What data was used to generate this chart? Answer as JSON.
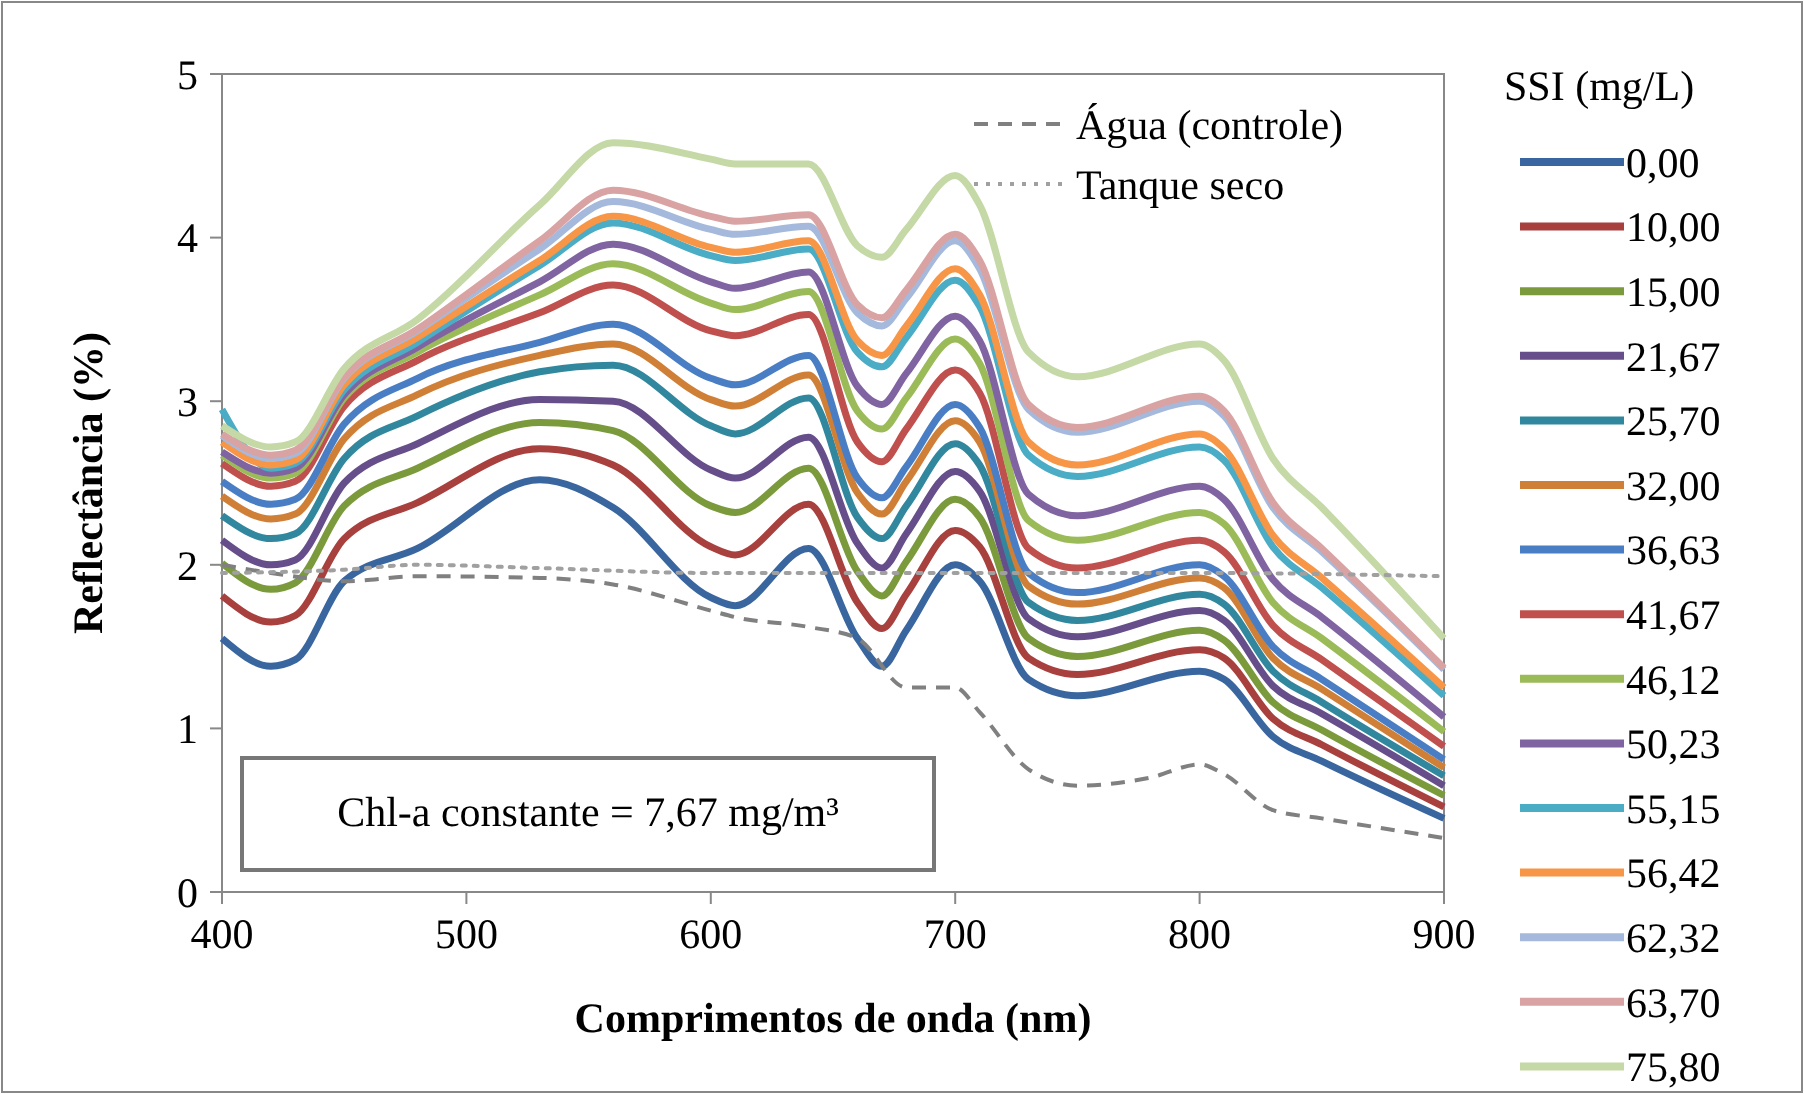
{
  "chart_data": {
    "type": "line",
    "xlabel": "Comprimentos de onda (nm)",
    "ylabel": "Reflectância (%)",
    "legend_title": "SSI (mg/L)",
    "legend": "right",
    "grid": false,
    "line_style": "solid",
    "xlim": [
      400,
      900
    ],
    "xticks": [
      400,
      500,
      600,
      700,
      800,
      900
    ],
    "ylim": [
      0,
      5
    ],
    "yticks": [
      0,
      1,
      2,
      3,
      4,
      5
    ],
    "annotations": [
      "Chl-a constante = 7,67 mg/m³"
    ],
    "x": [
      400,
      420,
      430,
      450,
      480,
      530,
      560,
      600,
      610,
      640,
      660,
      670,
      680,
      700,
      710,
      730,
      750,
      800,
      810,
      830,
      850,
      900
    ],
    "series": [
      {
        "name": "0,00",
        "color": "#3a66a0",
        "values": [
          1.55,
          1.38,
          1.42,
          1.9,
          2.1,
          2.52,
          2.35,
          1.8,
          1.75,
          2.1,
          1.55,
          1.38,
          1.6,
          2.0,
          1.9,
          1.3,
          1.2,
          1.35,
          1.3,
          0.95,
          0.8,
          0.45
        ]
      },
      {
        "name": "10,00",
        "color": "#a8403e",
        "values": [
          1.81,
          1.65,
          1.69,
          2.16,
          2.38,
          2.71,
          2.61,
          2.11,
          2.06,
          2.37,
          1.77,
          1.61,
          1.82,
          2.21,
          2.11,
          1.43,
          1.33,
          1.48,
          1.43,
          1.06,
          0.9,
          0.52
        ]
      },
      {
        "name": "15,00",
        "color": "#7a9a3c",
        "values": [
          2.01,
          1.85,
          1.89,
          2.36,
          2.59,
          2.87,
          2.82,
          2.36,
          2.32,
          2.59,
          1.96,
          1.81,
          2.02,
          2.4,
          2.29,
          1.55,
          1.44,
          1.6,
          1.54,
          1.16,
          0.99,
          0.59
        ]
      },
      {
        "name": "21,67",
        "color": "#654e8a",
        "values": [
          2.15,
          2.0,
          2.03,
          2.5,
          2.74,
          3.01,
          3.0,
          2.58,
          2.53,
          2.78,
          2.13,
          1.98,
          2.19,
          2.57,
          2.45,
          1.67,
          1.56,
          1.72,
          1.66,
          1.26,
          1.09,
          0.65
        ]
      },
      {
        "name": "25,70",
        "color": "#31889e",
        "values": [
          2.3,
          2.16,
          2.19,
          2.65,
          2.91,
          3.18,
          3.22,
          2.85,
          2.8,
          3.02,
          2.29,
          2.16,
          2.36,
          2.74,
          2.61,
          1.77,
          1.66,
          1.82,
          1.76,
          1.35,
          1.16,
          0.71
        ]
      },
      {
        "name": "32,00",
        "color": "#d07f37",
        "values": [
          2.42,
          2.28,
          2.31,
          2.77,
          3.04,
          3.28,
          3.35,
          3.01,
          2.97,
          3.16,
          2.44,
          2.31,
          2.51,
          2.88,
          2.75,
          1.87,
          1.76,
          1.92,
          1.86,
          1.43,
          1.24,
          0.76
        ]
      },
      {
        "name": "36,63",
        "color": "#4a7ec4",
        "values": [
          2.51,
          2.37,
          2.4,
          2.86,
          3.14,
          3.36,
          3.47,
          3.14,
          3.1,
          3.28,
          2.53,
          2.41,
          2.6,
          2.98,
          2.84,
          1.95,
          1.83,
          2.0,
          1.93,
          1.5,
          1.3,
          0.81
        ]
      },
      {
        "name": "41,67",
        "color": "#c0504d",
        "values": [
          2.62,
          2.48,
          2.51,
          2.97,
          3.25,
          3.54,
          3.71,
          3.43,
          3.4,
          3.53,
          2.75,
          2.63,
          2.83,
          3.19,
          3.05,
          2.1,
          1.98,
          2.15,
          2.08,
          1.63,
          1.42,
          0.89
        ]
      },
      {
        "name": "46,12",
        "color": "#9bbb59",
        "values": [
          2.67,
          2.53,
          2.56,
          3.02,
          3.3,
          3.65,
          3.84,
          3.6,
          3.56,
          3.67,
          2.94,
          2.83,
          3.02,
          3.38,
          3.23,
          2.27,
          2.15,
          2.32,
          2.25,
          1.77,
          1.55,
          0.98
        ]
      },
      {
        "name": "50,23",
        "color": "#8064a2",
        "values": [
          2.69,
          2.56,
          2.59,
          3.04,
          3.33,
          3.73,
          3.96,
          3.73,
          3.69,
          3.79,
          3.09,
          2.98,
          3.17,
          3.52,
          3.37,
          2.43,
          2.3,
          2.48,
          2.4,
          1.91,
          1.68,
          1.07
        ]
      },
      {
        "name": "55,15",
        "color": "#4bacc6",
        "values": [
          2.95,
          2.59,
          2.62,
          3.07,
          3.36,
          3.83,
          4.09,
          3.89,
          3.86,
          3.93,
          3.3,
          3.21,
          3.39,
          3.74,
          3.58,
          2.67,
          2.54,
          2.72,
          2.64,
          2.11,
          1.86,
          1.2
        ]
      },
      {
        "name": "56,42",
        "color": "#f79646",
        "values": [
          2.75,
          2.61,
          2.64,
          3.1,
          3.39,
          3.86,
          4.13,
          3.94,
          3.91,
          3.98,
          3.37,
          3.28,
          3.46,
          3.81,
          3.65,
          2.75,
          2.61,
          2.8,
          2.71,
          2.18,
          1.92,
          1.25
        ]
      },
      {
        "name": "62,32",
        "color": "#a5b9dc",
        "values": [
          2.79,
          2.65,
          2.68,
          3.14,
          3.43,
          3.93,
          4.22,
          4.05,
          4.02,
          4.07,
          3.54,
          3.46,
          3.63,
          3.98,
          3.81,
          2.95,
          2.81,
          3.0,
          2.91,
          2.35,
          2.08,
          1.36
        ]
      },
      {
        "name": "63,70",
        "color": "#d9a3a3",
        "values": [
          2.8,
          2.67,
          2.7,
          3.15,
          3.44,
          3.98,
          4.29,
          4.13,
          4.1,
          4.14,
          3.59,
          3.51,
          3.68,
          4.02,
          3.86,
          2.98,
          2.84,
          3.03,
          2.94,
          2.38,
          2.1,
          1.37
        ]
      },
      {
        "name": "75,80",
        "color": "#c4d9a5",
        "values": [
          2.85,
          2.72,
          2.75,
          3.2,
          3.5,
          4.2,
          4.58,
          4.48,
          4.45,
          4.45,
          3.95,
          3.88,
          4.05,
          4.38,
          4.2,
          3.3,
          3.15,
          3.35,
          3.25,
          2.65,
          2.35,
          1.55
        ]
      },
      {
        "name": "Água (controle)",
        "color": "#808080",
        "line_style": "dashed",
        "x": [
          400,
          420,
          450,
          480,
          530,
          560,
          600,
          610,
          640,
          660,
          680,
          700,
          710,
          730,
          750,
          780,
          800,
          810,
          830,
          850,
          900
        ],
        "values": [
          2.0,
          1.95,
          1.9,
          1.93,
          1.92,
          1.88,
          1.72,
          1.68,
          1.62,
          1.55,
          1.25,
          1.25,
          1.1,
          0.75,
          0.65,
          0.7,
          0.78,
          0.72,
          0.5,
          0.45,
          0.33
        ]
      },
      {
        "name": "Tanque seco",
        "color": "#a0a0a0",
        "line_style": "dotted",
        "x": [
          400,
          450,
          480,
          530,
          600,
          700,
          800,
          900
        ],
        "values": [
          1.95,
          1.97,
          2.0,
          1.98,
          1.95,
          1.95,
          1.95,
          1.93
        ]
      }
    ]
  }
}
